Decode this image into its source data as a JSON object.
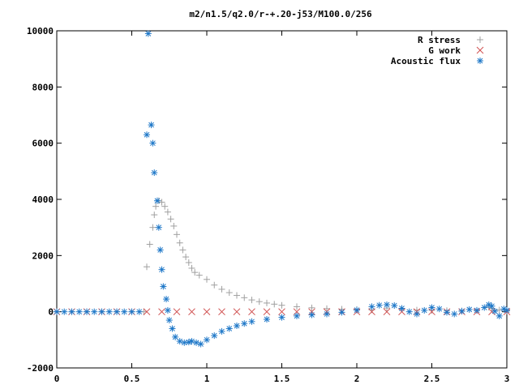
{
  "chart_data": {
    "type": "scatter",
    "title": "m2/n1.5/q2.0/r-+.20-j53/M100.0/256",
    "xlabel": "",
    "ylabel": "",
    "xlim": [
      0,
      3
    ],
    "ylim": [
      -2000,
      10000
    ],
    "x_ticks": [
      "0",
      "0.5",
      "1",
      "1.5",
      "2",
      "2.5",
      "3"
    ],
    "y_ticks": [
      "-2000",
      "0",
      "2000",
      "4000",
      "6000",
      "8000",
      "10000"
    ],
    "x_tick_values": [
      0,
      0.5,
      1,
      1.5,
      2,
      2.5,
      3
    ],
    "y_tick_values": [
      -2000,
      0,
      2000,
      4000,
      6000,
      8000,
      10000
    ],
    "grid": false,
    "legend_position": "top-right",
    "series": [
      {
        "name": "R stress",
        "marker": "plus",
        "color": "#a0a0a0",
        "points": [
          [
            0.0,
            0
          ],
          [
            0.1,
            0
          ],
          [
            0.2,
            0
          ],
          [
            0.3,
            0
          ],
          [
            0.4,
            0
          ],
          [
            0.5,
            0
          ],
          [
            0.58,
            0
          ],
          [
            0.6,
            1600
          ],
          [
            0.62,
            2400
          ],
          [
            0.64,
            3000
          ],
          [
            0.65,
            3450
          ],
          [
            0.66,
            3750
          ],
          [
            0.68,
            3950
          ],
          [
            0.7,
            3900
          ],
          [
            0.72,
            3750
          ],
          [
            0.74,
            3550
          ],
          [
            0.76,
            3300
          ],
          [
            0.78,
            3050
          ],
          [
            0.8,
            2750
          ],
          [
            0.82,
            2450
          ],
          [
            0.84,
            2200
          ],
          [
            0.86,
            1950
          ],
          [
            0.88,
            1750
          ],
          [
            0.9,
            1550
          ],
          [
            0.92,
            1400
          ],
          [
            0.95,
            1300
          ],
          [
            1.0,
            1150
          ],
          [
            1.05,
            950
          ],
          [
            1.1,
            800
          ],
          [
            1.15,
            680
          ],
          [
            1.2,
            580
          ],
          [
            1.25,
            500
          ],
          [
            1.3,
            420
          ],
          [
            1.35,
            360
          ],
          [
            1.4,
            310
          ],
          [
            1.45,
            270
          ],
          [
            1.5,
            230
          ],
          [
            1.6,
            180
          ],
          [
            1.7,
            140
          ],
          [
            1.8,
            110
          ],
          [
            1.9,
            90
          ],
          [
            2.0,
            80
          ],
          [
            2.1,
            70
          ],
          [
            2.2,
            130
          ],
          [
            2.3,
            90
          ],
          [
            2.4,
            60
          ],
          [
            2.5,
            50
          ],
          [
            2.6,
            40
          ],
          [
            2.7,
            30
          ],
          [
            2.8,
            40
          ],
          [
            2.88,
            160
          ],
          [
            2.9,
            120
          ],
          [
            2.95,
            60
          ],
          [
            3.0,
            30
          ]
        ]
      },
      {
        "name": "G work",
        "marker": "cross",
        "color": "#d05050",
        "points": [
          [
            0.0,
            0
          ],
          [
            0.1,
            0
          ],
          [
            0.2,
            0
          ],
          [
            0.3,
            0
          ],
          [
            0.4,
            0
          ],
          [
            0.5,
            0
          ],
          [
            0.6,
            0
          ],
          [
            0.7,
            0
          ],
          [
            0.8,
            0
          ],
          [
            0.9,
            0
          ],
          [
            1.0,
            0
          ],
          [
            1.1,
            0
          ],
          [
            1.2,
            0
          ],
          [
            1.3,
            0
          ],
          [
            1.4,
            0
          ],
          [
            1.5,
            0
          ],
          [
            1.6,
            0
          ],
          [
            1.7,
            0
          ],
          [
            1.8,
            0
          ],
          [
            1.9,
            0
          ],
          [
            2.0,
            0
          ],
          [
            2.1,
            0
          ],
          [
            2.2,
            0
          ],
          [
            2.3,
            0
          ],
          [
            2.4,
            0
          ],
          [
            2.5,
            0
          ],
          [
            2.6,
            0
          ],
          [
            2.7,
            0
          ],
          [
            2.8,
            0
          ],
          [
            2.9,
            0
          ],
          [
            3.0,
            0
          ]
        ]
      },
      {
        "name": "Acoustic flux",
        "marker": "star",
        "color": "#1f78c8",
        "points": [
          [
            0.0,
            0
          ],
          [
            0.05,
            0
          ],
          [
            0.1,
            0
          ],
          [
            0.15,
            0
          ],
          [
            0.2,
            0
          ],
          [
            0.25,
            0
          ],
          [
            0.3,
            0
          ],
          [
            0.35,
            0
          ],
          [
            0.4,
            0
          ],
          [
            0.45,
            0
          ],
          [
            0.5,
            0
          ],
          [
            0.55,
            0
          ],
          [
            0.6,
            6300
          ],
          [
            0.61,
            9900
          ],
          [
            0.63,
            6650
          ],
          [
            0.64,
            6000
          ],
          [
            0.65,
            4950
          ],
          [
            0.67,
            3950
          ],
          [
            0.68,
            3000
          ],
          [
            0.69,
            2200
          ],
          [
            0.7,
            1500
          ],
          [
            0.71,
            900
          ],
          [
            0.73,
            450
          ],
          [
            0.74,
            50
          ],
          [
            0.75,
            -300
          ],
          [
            0.77,
            -600
          ],
          [
            0.79,
            -900
          ],
          [
            0.82,
            -1050
          ],
          [
            0.85,
            -1100
          ],
          [
            0.88,
            -1080
          ],
          [
            0.9,
            -1050
          ],
          [
            0.93,
            -1100
          ],
          [
            0.96,
            -1150
          ],
          [
            1.0,
            -1000
          ],
          [
            1.05,
            -850
          ],
          [
            1.1,
            -700
          ],
          [
            1.15,
            -600
          ],
          [
            1.2,
            -500
          ],
          [
            1.25,
            -420
          ],
          [
            1.3,
            -350
          ],
          [
            1.4,
            -270
          ],
          [
            1.5,
            -200
          ],
          [
            1.6,
            -150
          ],
          [
            1.7,
            -110
          ],
          [
            1.8,
            -80
          ],
          [
            1.9,
            -20
          ],
          [
            2.0,
            60
          ],
          [
            2.1,
            180
          ],
          [
            2.15,
            230
          ],
          [
            2.2,
            250
          ],
          [
            2.25,
            220
          ],
          [
            2.3,
            120
          ],
          [
            2.35,
            0
          ],
          [
            2.4,
            -80
          ],
          [
            2.45,
            50
          ],
          [
            2.5,
            150
          ],
          [
            2.55,
            100
          ],
          [
            2.6,
            -20
          ],
          [
            2.65,
            -80
          ],
          [
            2.7,
            20
          ],
          [
            2.75,
            80
          ],
          [
            2.8,
            50
          ],
          [
            2.85,
            150
          ],
          [
            2.88,
            250
          ],
          [
            2.9,
            200
          ],
          [
            2.92,
            20
          ],
          [
            2.95,
            -150
          ],
          [
            2.98,
            100
          ],
          [
            3.0,
            50
          ]
        ]
      }
    ]
  }
}
